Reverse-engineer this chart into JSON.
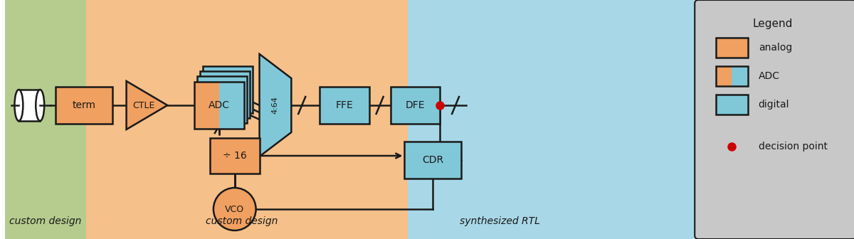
{
  "fig_width": 12.0,
  "fig_height": 3.36,
  "dpi": 100,
  "bg_green": "#b5cc8e",
  "bg_orange": "#f5c08a",
  "bg_blue": "#a8d8e8",
  "bg_legend": "#c8c8c8",
  "color_analog": "#f0a060",
  "color_digital": "#80c8d8",
  "color_black": "#1a1a1a",
  "color_red": "#cc0000",
  "analog_fill": "#f0a060",
  "digital_fill": "#80c8d8",
  "label_custom": "custom design",
  "label_synth": "synthesized RTL",
  "label_legend": "Legend",
  "legend_items": [
    "analog",
    "ADC",
    "digital",
    "decision point"
  ]
}
